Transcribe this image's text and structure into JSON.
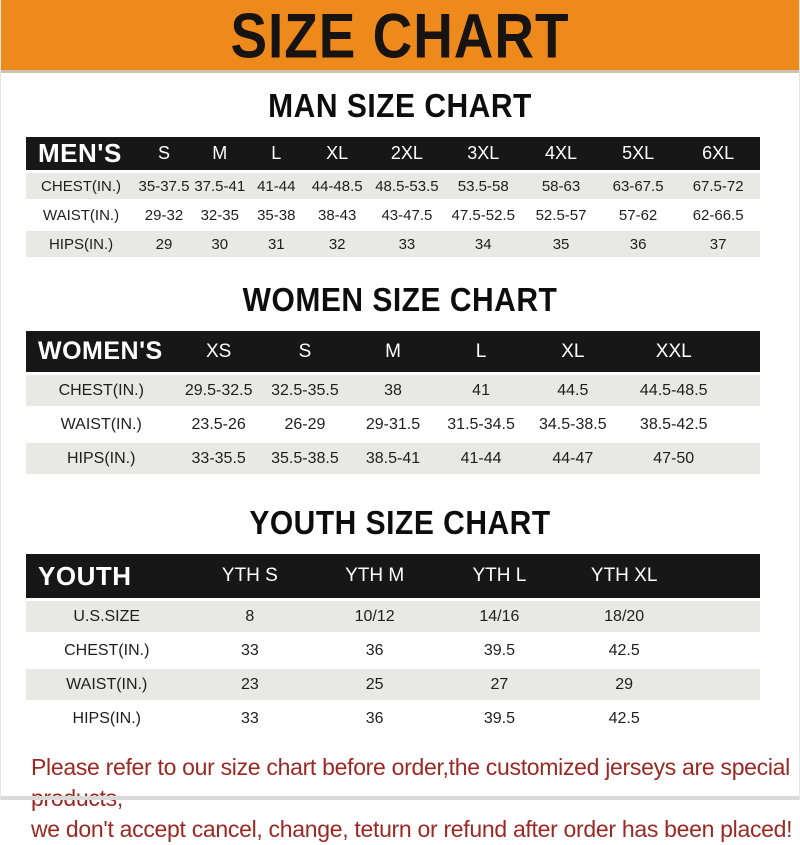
{
  "page": {
    "banner_title": "SIZE CHART"
  },
  "colors": {
    "banner_bg": "#ee8a1c",
    "banner_text": "#171310",
    "table_header_bg": "#171717",
    "row_alt_bg": "#e8e8e5",
    "footer_text": "#9b2823"
  },
  "sections": {
    "man": {
      "title": "MAN SIZE CHART",
      "header": {
        "label": "MEN'S",
        "columns": [
          "S",
          "M",
          "L",
          "XL",
          "2XL",
          "3XL",
          "4XL",
          "5XL",
          "6XL"
        ]
      },
      "rows": [
        {
          "label": "CHEST(IN.)",
          "values": [
            "35-37.5",
            "37.5-41",
            "41-44",
            "44-48.5",
            "48.5-53.5",
            "53.5-58",
            "58-63",
            "63-67.5",
            "67.5-72"
          ]
        },
        {
          "label": "WAIST(IN.)",
          "values": [
            "29-32",
            "32-35",
            "35-38",
            "38-43",
            "43-47.5",
            "47.5-52.5",
            "52.5-57",
            "57-62",
            "62-66.5"
          ]
        },
        {
          "label": "HIPS(IN.)",
          "values": [
            "29",
            "30",
            "31",
            "32",
            "33",
            "34",
            "35",
            "36",
            "37"
          ]
        }
      ]
    },
    "women": {
      "title": "WOMEN SIZE CHART",
      "header": {
        "label": "WOMEN'S",
        "columns": [
          "XS",
          "S",
          "M",
          "L",
          "XL",
          "XXL"
        ]
      },
      "rows": [
        {
          "label": "CHEST(IN.)",
          "values": [
            "29.5-32.5",
            "32.5-35.5",
            "38",
            "41",
            "44.5",
            "44.5-48.5"
          ]
        },
        {
          "label": "WAIST(IN.)",
          "values": [
            "23.5-26",
            "26-29",
            "29-31.5",
            "31.5-34.5",
            "34.5-38.5",
            "38.5-42.5"
          ]
        },
        {
          "label": "HIPS(IN.)",
          "values": [
            "33-35.5",
            "35.5-38.5",
            "38.5-41",
            "41-44",
            "44-47",
            "47-50"
          ]
        }
      ]
    },
    "youth": {
      "title": "YOUTH SIZE CHART",
      "header": {
        "label": "YOUTH",
        "columns": [
          "YTH S",
          "YTH M",
          "YTH L",
          "YTH XL"
        ]
      },
      "rows": [
        {
          "label": "U.S.SIZE",
          "values": [
            "8",
            "10/12",
            "14/16",
            "18/20"
          ]
        },
        {
          "label": "CHEST(IN.)",
          "values": [
            "33",
            "36",
            "39.5",
            "42.5"
          ]
        },
        {
          "label": "WAIST(IN.)",
          "values": [
            "23",
            "25",
            "27",
            "29"
          ]
        },
        {
          "label": "HIPS(IN.)",
          "values": [
            "33",
            "36",
            "39.5",
            "42.5"
          ]
        }
      ]
    }
  },
  "footer": {
    "line1": "Please refer to our size chart before order,the customized jerseys are special products,",
    "line2": "we don't accept cancel, change, teturn or refund after order has been placed!"
  }
}
